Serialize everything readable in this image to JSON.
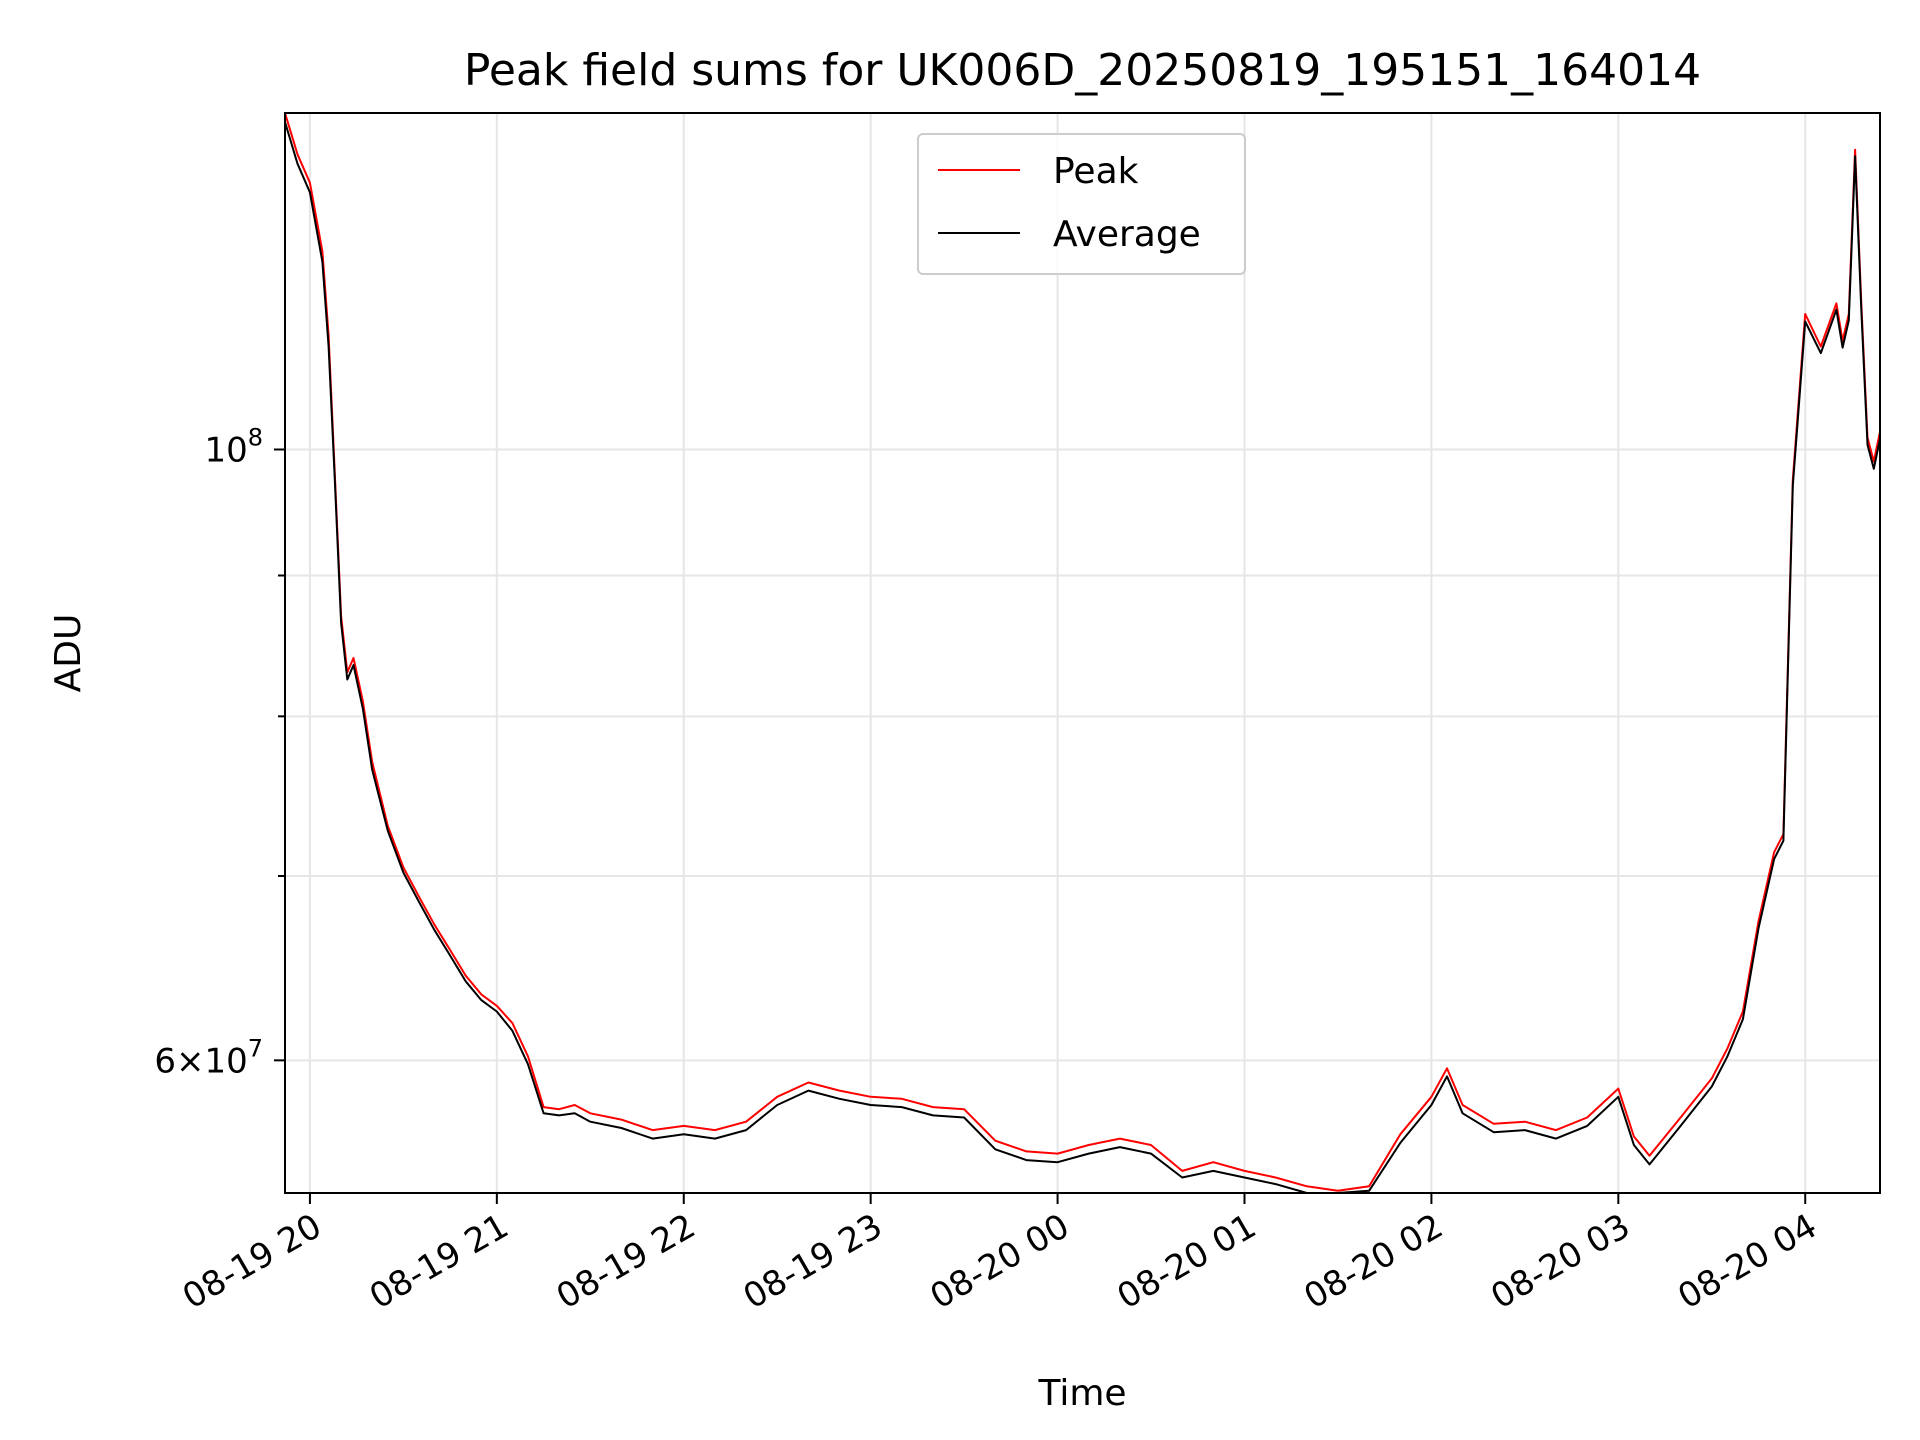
{
  "chart_data": {
    "type": "line",
    "title": "Peak field sums for UK006D_20250819_195151_164014",
    "xlabel": "Time",
    "ylabel": "ADU",
    "x_axis": "datetime",
    "xlim": [
      "2025-08-19 19:52",
      "2025-08-20 04:24"
    ],
    "x_ticks": [
      {
        "value": "2025-08-19 20:00",
        "label": "08-19 20"
      },
      {
        "value": "2025-08-19 21:00",
        "label": "08-19 21"
      },
      {
        "value": "2025-08-19 22:00",
        "label": "08-19 22"
      },
      {
        "value": "2025-08-19 23:00",
        "label": "08-19 23"
      },
      {
        "value": "2025-08-20 00:00",
        "label": "08-20 00"
      },
      {
        "value": "2025-08-20 01:00",
        "label": "08-20 01"
      },
      {
        "value": "2025-08-20 02:00",
        "label": "08-20 02"
      },
      {
        "value": "2025-08-20 03:00",
        "label": "08-20 03"
      },
      {
        "value": "2025-08-20 04:00",
        "label": "08-20 04"
      }
    ],
    "y_scale": "log",
    "ylim": [
      53700000,
      132500000
    ],
    "y_major_ticks": [
      {
        "value": 100000000,
        "base": "10",
        "exp": "8"
      },
      {
        "value": 60000000,
        "mantissa": "6",
        "base": "10",
        "exp": "7"
      }
    ],
    "y_minor_ticks": [
      70000000,
      80000000,
      90000000
    ],
    "grid": true,
    "legend": {
      "placement": "top-center",
      "entries": [
        "Peak",
        "Average"
      ]
    },
    "colors": {
      "Peak": "#ff0000",
      "Average": "#000000"
    },
    "series": [
      {
        "name": "Peak",
        "color": "#ff0000",
        "x": [
          "2025-08-19 19:52",
          "2025-08-19 19:56",
          "2025-08-19 20:00",
          "2025-08-19 20:04",
          "2025-08-19 20:06",
          "2025-08-19 20:08",
          "2025-08-19 20:10",
          "2025-08-19 20:12",
          "2025-08-19 20:14",
          "2025-08-19 20:17",
          "2025-08-19 20:20",
          "2025-08-19 20:25",
          "2025-08-19 20:30",
          "2025-08-19 20:35",
          "2025-08-19 20:40",
          "2025-08-19 20:45",
          "2025-08-19 20:50",
          "2025-08-19 20:55",
          "2025-08-19 21:00",
          "2025-08-19 21:05",
          "2025-08-19 21:10",
          "2025-08-19 21:15",
          "2025-08-19 21:20",
          "2025-08-19 21:25",
          "2025-08-19 21:30",
          "2025-08-19 21:40",
          "2025-08-19 21:50",
          "2025-08-19 22:00",
          "2025-08-19 22:10",
          "2025-08-19 22:20",
          "2025-08-19 22:30",
          "2025-08-19 22:40",
          "2025-08-19 22:50",
          "2025-08-19 23:00",
          "2025-08-19 23:10",
          "2025-08-19 23:20",
          "2025-08-19 23:30",
          "2025-08-19 23:40",
          "2025-08-19 23:50",
          "2025-08-20 00:00",
          "2025-08-20 00:10",
          "2025-08-20 00:20",
          "2025-08-20 00:30",
          "2025-08-20 00:40",
          "2025-08-20 00:50",
          "2025-08-20 01:00",
          "2025-08-20 01:10",
          "2025-08-20 01:20",
          "2025-08-20 01:30",
          "2025-08-20 01:40",
          "2025-08-20 01:50",
          "2025-08-20 02:00",
          "2025-08-20 02:05",
          "2025-08-20 02:10",
          "2025-08-20 02:20",
          "2025-08-20 02:30",
          "2025-08-20 02:40",
          "2025-08-20 02:50",
          "2025-08-20 03:00",
          "2025-08-20 03:05",
          "2025-08-20 03:10",
          "2025-08-20 03:20",
          "2025-08-20 03:30",
          "2025-08-20 03:35",
          "2025-08-20 03:40",
          "2025-08-20 03:45",
          "2025-08-20 03:50",
          "2025-08-20 03:53",
          "2025-08-20 03:56",
          "2025-08-20 04:00",
          "2025-08-20 04:05",
          "2025-08-20 04:10",
          "2025-08-20 04:12",
          "2025-08-20 04:14",
          "2025-08-20 04:16",
          "2025-08-20 04:18",
          "2025-08-20 04:20",
          "2025-08-20 04:22",
          "2025-08-20 04:24"
        ],
        "values": [
          132500000,
          128000000,
          125000000,
          118000000,
          110000000,
          98000000,
          87000000,
          83000000,
          84000000,
          81000000,
          77000000,
          73000000,
          70500000,
          68800000,
          67200000,
          65800000,
          64400000,
          63400000,
          62800000,
          61900000,
          60200000,
          57700000,
          57600000,
          57800000,
          57400000,
          57100000,
          56600000,
          56800000,
          56600000,
          57000000,
          58200000,
          58900000,
          58500000,
          58200000,
          58100000,
          57700000,
          57600000,
          56100000,
          55600000,
          55500000,
          55900000,
          56200000,
          55900000,
          54700000,
          55100000,
          54700000,
          54400000,
          54000000,
          53800000,
          54000000,
          56400000,
          58200000,
          59600000,
          57800000,
          56900000,
          57000000,
          56600000,
          57200000,
          58600000,
          56300000,
          55400000,
          57200000,
          59100000,
          60600000,
          62500000,
          67400000,
          71400000,
          72500000,
          97500000,
          112000000,
          109000000,
          113000000,
          109500000,
          112000000,
          128500000,
          113000000,
          101000000,
          99000000,
          101500000
        ]
      },
      {
        "name": "Average",
        "color": "#000000",
        "x": [
          "2025-08-19 19:52",
          "2025-08-19 19:56",
          "2025-08-19 20:00",
          "2025-08-19 20:04",
          "2025-08-19 20:06",
          "2025-08-19 20:08",
          "2025-08-19 20:10",
          "2025-08-19 20:12",
          "2025-08-19 20:14",
          "2025-08-19 20:17",
          "2025-08-19 20:20",
          "2025-08-19 20:25",
          "2025-08-19 20:30",
          "2025-08-19 20:35",
          "2025-08-19 20:40",
          "2025-08-19 20:45",
          "2025-08-19 20:50",
          "2025-08-19 20:55",
          "2025-08-19 21:00",
          "2025-08-19 21:05",
          "2025-08-19 21:10",
          "2025-08-19 21:15",
          "2025-08-19 21:20",
          "2025-08-19 21:25",
          "2025-08-19 21:30",
          "2025-08-19 21:40",
          "2025-08-19 21:50",
          "2025-08-19 22:00",
          "2025-08-19 22:10",
          "2025-08-19 22:20",
          "2025-08-19 22:30",
          "2025-08-19 22:40",
          "2025-08-19 22:50",
          "2025-08-19 23:00",
          "2025-08-19 23:10",
          "2025-08-19 23:20",
          "2025-08-19 23:30",
          "2025-08-19 23:40",
          "2025-08-19 23:50",
          "2025-08-20 00:00",
          "2025-08-20 00:10",
          "2025-08-20 00:20",
          "2025-08-20 00:30",
          "2025-08-20 00:40",
          "2025-08-20 00:50",
          "2025-08-20 01:00",
          "2025-08-20 01:10",
          "2025-08-20 01:20",
          "2025-08-20 01:30",
          "2025-08-20 01:40",
          "2025-08-20 01:50",
          "2025-08-20 02:00",
          "2025-08-20 02:05",
          "2025-08-20 02:10",
          "2025-08-20 02:20",
          "2025-08-20 02:30",
          "2025-08-20 02:40",
          "2025-08-20 02:50",
          "2025-08-20 03:00",
          "2025-08-20 03:05",
          "2025-08-20 03:10",
          "2025-08-20 03:20",
          "2025-08-20 03:30",
          "2025-08-20 03:35",
          "2025-08-20 03:40",
          "2025-08-20 03:45",
          "2025-08-20 03:50",
          "2025-08-20 03:53",
          "2025-08-20 03:56",
          "2025-08-20 04:00",
          "2025-08-20 04:05",
          "2025-08-20 04:10",
          "2025-08-20 04:12",
          "2025-08-20 04:14",
          "2025-08-20 04:16",
          "2025-08-20 04:18",
          "2025-08-20 04:20",
          "2025-08-20 04:22",
          "2025-08-20 04:24"
        ],
        "values": [
          131500000,
          127000000,
          124000000,
          117000000,
          109000000,
          97500000,
          86500000,
          82500000,
          83500000,
          80500000,
          76500000,
          72700000,
          70200000,
          68500000,
          66900000,
          65500000,
          64100000,
          63100000,
          62500000,
          61500000,
          59800000,
          57400000,
          57300000,
          57400000,
          57000000,
          56700000,
          56200000,
          56400000,
          56200000,
          56600000,
          57800000,
          58500000,
          58100000,
          57800000,
          57700000,
          57300000,
          57200000,
          55700000,
          55200000,
          55100000,
          55500000,
          55800000,
          55500000,
          54400000,
          54700000,
          54400000,
          54100000,
          53700000,
          53700000,
          53800000,
          56000000,
          57800000,
          59200000,
          57400000,
          56500000,
          56600000,
          56200000,
          56800000,
          58200000,
          55900000,
          55000000,
          56800000,
          58700000,
          60200000,
          62100000,
          67000000,
          71000000,
          72100000,
          97000000,
          111300000,
          108400000,
          112400000,
          108900000,
          111400000,
          127800000,
          112400000,
          100400000,
          98400000,
          100900000
        ]
      }
    ]
  }
}
